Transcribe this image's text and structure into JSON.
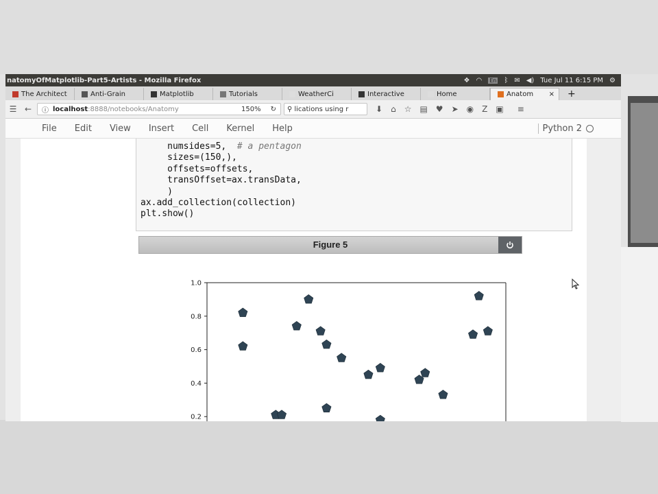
{
  "window": {
    "title": "natomyOfMatplotlib-Part5-Artists - Mozilla Firefox",
    "clock": "Tue Jul 11  6:15 PM",
    "keyboard": "En"
  },
  "tabs": [
    {
      "label": "The Architect",
      "fav": "#c0392b"
    },
    {
      "label": "Anti-Grain",
      "fav": "#555555"
    },
    {
      "label": "Matplotlib",
      "fav": "#333333"
    },
    {
      "label": "Tutorials",
      "fav": "#777777"
    },
    {
      "label": "WeatherCi",
      "fav": "#dddddd"
    },
    {
      "label": "Interactive",
      "fav": "#333333"
    },
    {
      "label": "Home",
      "fav": "#dddddd"
    },
    {
      "label": "Anatom",
      "fav": "#e07020",
      "active": true
    }
  ],
  "nav": {
    "url_host": "localhost",
    "url_rest": ":8888/notebooks/Anatomy",
    "zoom": "150%",
    "search_text": "lications using r"
  },
  "menu": {
    "items": [
      "File",
      "Edit",
      "View",
      "Insert",
      "Cell",
      "Kernel",
      "Help"
    ],
    "kernel": "Python 2"
  },
  "code": {
    "line1": "     numsides=5,  ",
    "line1_comment": "# a pentagon",
    "line2": "     sizes=(150,),",
    "line3": "     offsets=offsets,",
    "line4": "     transOffset=ax.transData,",
    "line5": "     )",
    "line6": "ax.add_collection(collection)",
    "line7": "plt.show()"
  },
  "figure": {
    "title": "Figure 5"
  },
  "chart_data": {
    "type": "scatter",
    "marker": "pentagon",
    "color": "#2f4454",
    "ylim": [
      0,
      1.0
    ],
    "xlim": [
      0,
      1.0
    ],
    "yticks": [
      "1.0",
      "0.8",
      "0.6",
      "0.4",
      "0.2"
    ],
    "ytick_values": [
      1.0,
      0.8,
      0.6,
      0.4,
      0.2
    ],
    "points": [
      {
        "x": 0.12,
        "y": 0.82
      },
      {
        "x": 0.12,
        "y": 0.62
      },
      {
        "x": 0.23,
        "y": 0.21
      },
      {
        "x": 0.25,
        "y": 0.21
      },
      {
        "x": 0.3,
        "y": 0.74
      },
      {
        "x": 0.34,
        "y": 0.9
      },
      {
        "x": 0.38,
        "y": 0.71
      },
      {
        "x": 0.4,
        "y": 0.63
      },
      {
        "x": 0.4,
        "y": 0.25
      },
      {
        "x": 0.45,
        "y": 0.55
      },
      {
        "x": 0.54,
        "y": 0.45
      },
      {
        "x": 0.58,
        "y": 0.49
      },
      {
        "x": 0.58,
        "y": 0.18
      },
      {
        "x": 0.71,
        "y": 0.42
      },
      {
        "x": 0.73,
        "y": 0.46
      },
      {
        "x": 0.79,
        "y": 0.33
      },
      {
        "x": 0.89,
        "y": 0.69
      },
      {
        "x": 0.91,
        "y": 0.92
      },
      {
        "x": 0.94,
        "y": 0.71
      }
    ]
  }
}
